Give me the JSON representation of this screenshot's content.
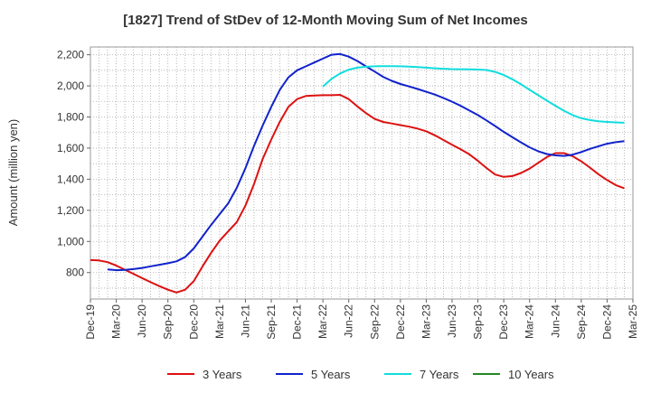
{
  "chart_data": {
    "type": "line",
    "title": "[1827]  Trend of StDev of 12-Month Moving Sum of Net Incomes",
    "ylabel": "Amount (million yen)",
    "xlabel": "",
    "ylim": [
      630,
      2250
    ],
    "yticks": [
      800,
      1000,
      1200,
      1400,
      1600,
      1800,
      2000,
      2200
    ],
    "ytick_labels": [
      "800",
      "1,000",
      "1,200",
      "1,400",
      "1,600",
      "1,800",
      "2,000",
      "2,200"
    ],
    "x_range": [
      "2019-12",
      "2025-03"
    ],
    "xtick_labels": [
      "Dec-19",
      "Mar-20",
      "Jun-20",
      "Sep-20",
      "Dec-20",
      "Mar-21",
      "Jun-21",
      "Sep-21",
      "Dec-21",
      "Mar-22",
      "Jun-22",
      "Sep-22",
      "Dec-22",
      "Mar-23",
      "Jun-23",
      "Sep-23",
      "Dec-23",
      "Mar-24",
      "Jun-24",
      "Sep-24",
      "Dec-24",
      "Mar-25"
    ],
    "grid": true,
    "legend_position": "bottom",
    "series": [
      {
        "name": "3 Years",
        "color": "#dd1111",
        "points": [
          [
            "2019-12",
            880
          ],
          [
            "2020-01",
            878
          ],
          [
            "2020-02",
            867
          ],
          [
            "2020-03",
            845
          ],
          [
            "2020-04",
            818
          ],
          [
            "2020-05",
            792
          ],
          [
            "2020-06",
            765
          ],
          [
            "2020-07",
            738
          ],
          [
            "2020-08",
            713
          ],
          [
            "2020-09",
            690
          ],
          [
            "2020-10",
            672
          ],
          [
            "2020-11",
            690
          ],
          [
            "2020-12",
            745
          ],
          [
            "2021-01",
            838
          ],
          [
            "2021-02",
            925
          ],
          [
            "2021-03",
            1005
          ],
          [
            "2021-04",
            1065
          ],
          [
            "2021-05",
            1125
          ],
          [
            "2021-06",
            1230
          ],
          [
            "2021-07",
            1370
          ],
          [
            "2021-08",
            1530
          ],
          [
            "2021-09",
            1655
          ],
          [
            "2021-10",
            1770
          ],
          [
            "2021-11",
            1865
          ],
          [
            "2021-12",
            1915
          ],
          [
            "2022-01",
            1935
          ],
          [
            "2022-02",
            1938
          ],
          [
            "2022-03",
            1940
          ],
          [
            "2022-04",
            1940
          ],
          [
            "2022-05",
            1942
          ],
          [
            "2022-06",
            1915
          ],
          [
            "2022-07",
            1868
          ],
          [
            "2022-08",
            1825
          ],
          [
            "2022-09",
            1788
          ],
          [
            "2022-10",
            1768
          ],
          [
            "2022-11",
            1758
          ],
          [
            "2022-12",
            1748
          ],
          [
            "2023-01",
            1738
          ],
          [
            "2023-02",
            1725
          ],
          [
            "2023-03",
            1708
          ],
          [
            "2023-04",
            1682
          ],
          [
            "2023-05",
            1652
          ],
          [
            "2023-06",
            1622
          ],
          [
            "2023-07",
            1592
          ],
          [
            "2023-08",
            1560
          ],
          [
            "2023-09",
            1518
          ],
          [
            "2023-10",
            1472
          ],
          [
            "2023-11",
            1430
          ],
          [
            "2023-12",
            1415
          ],
          [
            "2024-01",
            1420
          ],
          [
            "2024-02",
            1440
          ],
          [
            "2024-03",
            1468
          ],
          [
            "2024-04",
            1505
          ],
          [
            "2024-05",
            1542
          ],
          [
            "2024-06",
            1568
          ],
          [
            "2024-07",
            1568
          ],
          [
            "2024-08",
            1548
          ],
          [
            "2024-09",
            1515
          ],
          [
            "2024-10",
            1475
          ],
          [
            "2024-11",
            1432
          ],
          [
            "2024-12",
            1395
          ],
          [
            "2025-01",
            1362
          ],
          [
            "2025-02",
            1342
          ]
        ]
      },
      {
        "name": "5 Years",
        "color": "#1122cc",
        "points": [
          [
            "2020-02",
            820
          ],
          [
            "2020-03",
            815
          ],
          [
            "2020-04",
            817
          ],
          [
            "2020-05",
            822
          ],
          [
            "2020-06",
            830
          ],
          [
            "2020-07",
            840
          ],
          [
            "2020-08",
            850
          ],
          [
            "2020-09",
            860
          ],
          [
            "2020-10",
            872
          ],
          [
            "2020-11",
            900
          ],
          [
            "2020-12",
            955
          ],
          [
            "2021-01",
            1030
          ],
          [
            "2021-02",
            1105
          ],
          [
            "2021-03",
            1175
          ],
          [
            "2021-04",
            1245
          ],
          [
            "2021-05",
            1345
          ],
          [
            "2021-06",
            1470
          ],
          [
            "2021-07",
            1615
          ],
          [
            "2021-08",
            1745
          ],
          [
            "2021-09",
            1865
          ],
          [
            "2021-10",
            1975
          ],
          [
            "2021-11",
            2055
          ],
          [
            "2021-12",
            2100
          ],
          [
            "2022-01",
            2125
          ],
          [
            "2022-02",
            2150
          ],
          [
            "2022-03",
            2175
          ],
          [
            "2022-04",
            2200
          ],
          [
            "2022-05",
            2205
          ],
          [
            "2022-06",
            2188
          ],
          [
            "2022-07",
            2160
          ],
          [
            "2022-08",
            2125
          ],
          [
            "2022-09",
            2092
          ],
          [
            "2022-10",
            2058
          ],
          [
            "2022-11",
            2032
          ],
          [
            "2022-12",
            2012
          ],
          [
            "2023-01",
            1996
          ],
          [
            "2023-02",
            1980
          ],
          [
            "2023-03",
            1962
          ],
          [
            "2023-04",
            1944
          ],
          [
            "2023-05",
            1922
          ],
          [
            "2023-06",
            1898
          ],
          [
            "2023-07",
            1872
          ],
          [
            "2023-08",
            1842
          ],
          [
            "2023-09",
            1812
          ],
          [
            "2023-10",
            1778
          ],
          [
            "2023-11",
            1742
          ],
          [
            "2023-12",
            1705
          ],
          [
            "2024-01",
            1670
          ],
          [
            "2024-02",
            1637
          ],
          [
            "2024-03",
            1605
          ],
          [
            "2024-04",
            1580
          ],
          [
            "2024-05",
            1562
          ],
          [
            "2024-06",
            1553
          ],
          [
            "2024-07",
            1550
          ],
          [
            "2024-08",
            1558
          ],
          [
            "2024-09",
            1575
          ],
          [
            "2024-10",
            1595
          ],
          [
            "2024-11",
            1612
          ],
          [
            "2024-12",
            1628
          ],
          [
            "2025-01",
            1638
          ],
          [
            "2025-02",
            1645
          ]
        ]
      },
      {
        "name": "7 Years",
        "color": "#11dddd",
        "points": [
          [
            "2022-03",
            1995
          ],
          [
            "2022-04",
            2045
          ],
          [
            "2022-05",
            2080
          ],
          [
            "2022-06",
            2104
          ],
          [
            "2022-07",
            2117
          ],
          [
            "2022-08",
            2123
          ],
          [
            "2022-09",
            2126
          ],
          [
            "2022-10",
            2127
          ],
          [
            "2022-11",
            2127
          ],
          [
            "2022-12",
            2126
          ],
          [
            "2023-01",
            2124
          ],
          [
            "2023-02",
            2121
          ],
          [
            "2023-03",
            2117
          ],
          [
            "2023-04",
            2113
          ],
          [
            "2023-05",
            2110
          ],
          [
            "2023-06",
            2108
          ],
          [
            "2023-07",
            2107
          ],
          [
            "2023-08",
            2106
          ],
          [
            "2023-09",
            2105
          ],
          [
            "2023-10",
            2102
          ],
          [
            "2023-11",
            2090
          ],
          [
            "2023-12",
            2070
          ],
          [
            "2024-01",
            2042
          ],
          [
            "2024-02",
            2010
          ],
          [
            "2024-03",
            1975
          ],
          [
            "2024-04",
            1940
          ],
          [
            "2024-05",
            1905
          ],
          [
            "2024-06",
            1872
          ],
          [
            "2024-07",
            1840
          ],
          [
            "2024-08",
            1812
          ],
          [
            "2024-09",
            1792
          ],
          [
            "2024-10",
            1780
          ],
          [
            "2024-11",
            1772
          ],
          [
            "2024-12",
            1768
          ],
          [
            "2025-01",
            1765
          ],
          [
            "2025-02",
            1763
          ]
        ]
      },
      {
        "name": "10 Years",
        "color": "#228822",
        "points": []
      }
    ]
  }
}
